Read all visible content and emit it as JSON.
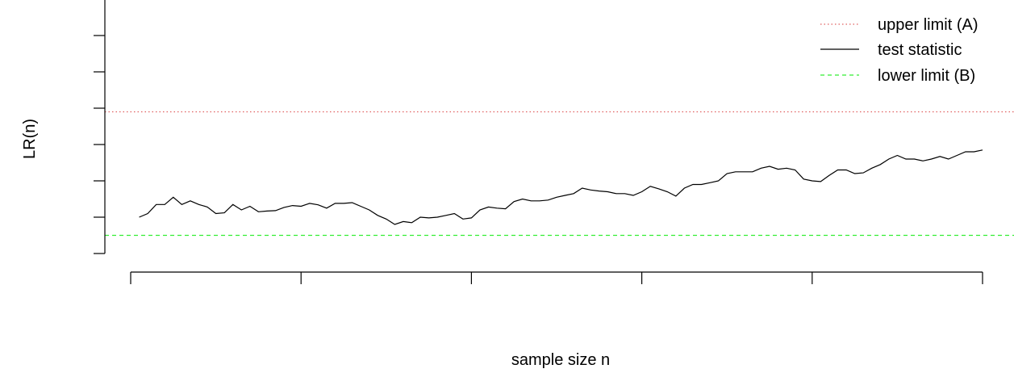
{
  "chart_data": {
    "type": "line",
    "title": "",
    "xlabel": "sample size n",
    "ylabel": "LR(n)",
    "xlim": [
      0,
      100
    ],
    "ylim": [
      -1.2,
      5.8
    ],
    "x_ticks": [
      0,
      20,
      40,
      60,
      80,
      100
    ],
    "y_ticks": [
      -1,
      0,
      1,
      2,
      3,
      4,
      5,
      6
    ],
    "show_tick_labels": false,
    "grid": false,
    "legend_position": "top-right",
    "colors": {
      "upper": "#e06060",
      "statistic": "#000000",
      "lower": "#33ee33",
      "axis": "#000000"
    },
    "series": [
      {
        "name": "upper limit (A)",
        "role": "upper",
        "style": "dotted",
        "value": 2.9
      },
      {
        "name": "test statistic",
        "role": "statistic",
        "style": "solid",
        "x": [
          1,
          2,
          3,
          4,
          5,
          6,
          7,
          8,
          9,
          10,
          11,
          12,
          13,
          14,
          15,
          16,
          17,
          18,
          19,
          20,
          21,
          22,
          23,
          24,
          25,
          26,
          27,
          28,
          29,
          30,
          31,
          32,
          33,
          34,
          35,
          36,
          37,
          38,
          39,
          40,
          41,
          42,
          43,
          44,
          45,
          46,
          47,
          48,
          49,
          50,
          51,
          52,
          53,
          54,
          55,
          56,
          57,
          58,
          59,
          60,
          61,
          62,
          63,
          64,
          65,
          66,
          67,
          68,
          69,
          70,
          71,
          72,
          73,
          74,
          75,
          76,
          77,
          78,
          79,
          80,
          81,
          82,
          83,
          84,
          85,
          86,
          87,
          88,
          89,
          90,
          91,
          92,
          93,
          94,
          95,
          96,
          97,
          98,
          99,
          100,
          101
        ],
        "values": [
          0.0,
          0.1,
          0.35,
          0.35,
          0.55,
          0.35,
          0.45,
          0.35,
          0.28,
          0.1,
          0.12,
          0.35,
          0.2,
          0.3,
          0.15,
          0.17,
          0.18,
          0.27,
          0.32,
          0.3,
          0.38,
          0.34,
          0.25,
          0.38,
          0.38,
          0.4,
          0.3,
          0.2,
          0.05,
          -0.05,
          -0.2,
          -0.12,
          -0.15,
          0.0,
          -0.02,
          0.0,
          0.05,
          0.1,
          -0.05,
          -0.02,
          0.2,
          0.28,
          0.25,
          0.23,
          0.43,
          0.5,
          0.45,
          0.45,
          0.47,
          0.55,
          0.6,
          0.65,
          0.8,
          0.75,
          0.72,
          0.7,
          0.65,
          0.65,
          0.6,
          0.7,
          0.85,
          0.78,
          0.7,
          0.58,
          0.8,
          0.9,
          0.9,
          0.95,
          1.0,
          1.2,
          1.25,
          1.25,
          1.25,
          1.35,
          1.4,
          1.32,
          1.35,
          1.3,
          1.05,
          1.0,
          0.98,
          1.15,
          1.3,
          1.3,
          1.2,
          1.22,
          1.35,
          1.45,
          1.6,
          1.7,
          1.6,
          1.6,
          1.55,
          1.6,
          1.67,
          1.6,
          1.7,
          1.8,
          1.8,
          1.85,
          null
        ]
      },
      {
        "name": "lower limit (B)",
        "role": "lower",
        "style": "dashed",
        "value": -0.5
      }
    ]
  }
}
